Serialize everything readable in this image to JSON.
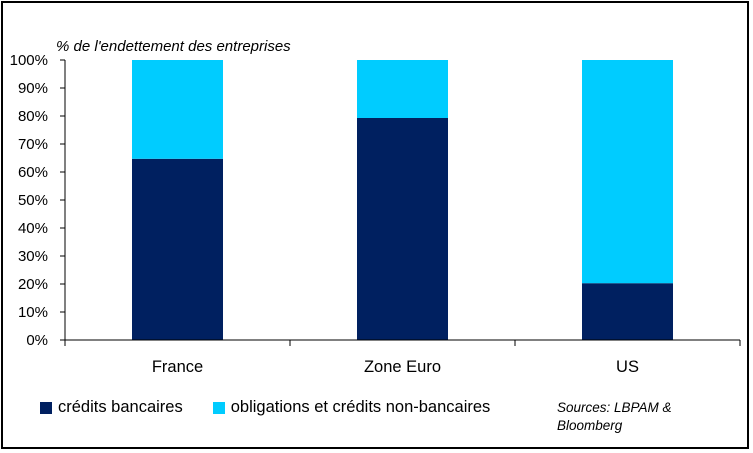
{
  "chart_data": {
    "type": "bar",
    "stacked": true,
    "ylabel": "% de l'endettement des entreprises",
    "categories": [
      "France",
      "Zone Euro",
      "US"
    ],
    "series": [
      {
        "name": "crédits bancaires",
        "values": [
          64.7,
          79.3,
          20.3
        ],
        "color": "#002060"
      },
      {
        "name": "obligations et crédits non-bancaires",
        "values": [
          35.3,
          20.7,
          79.7
        ],
        "color": "#00CCFF"
      }
    ],
    "ylim": [
      0,
      100
    ],
    "yticks": [
      "0%",
      "10%",
      "20%",
      "30%",
      "40%",
      "50%",
      "60%",
      "70%",
      "80%",
      "90%",
      "100%"
    ],
    "grid": false,
    "legend_position": "bottom-left",
    "source": "Sources: LBPAM & Bloomberg"
  }
}
